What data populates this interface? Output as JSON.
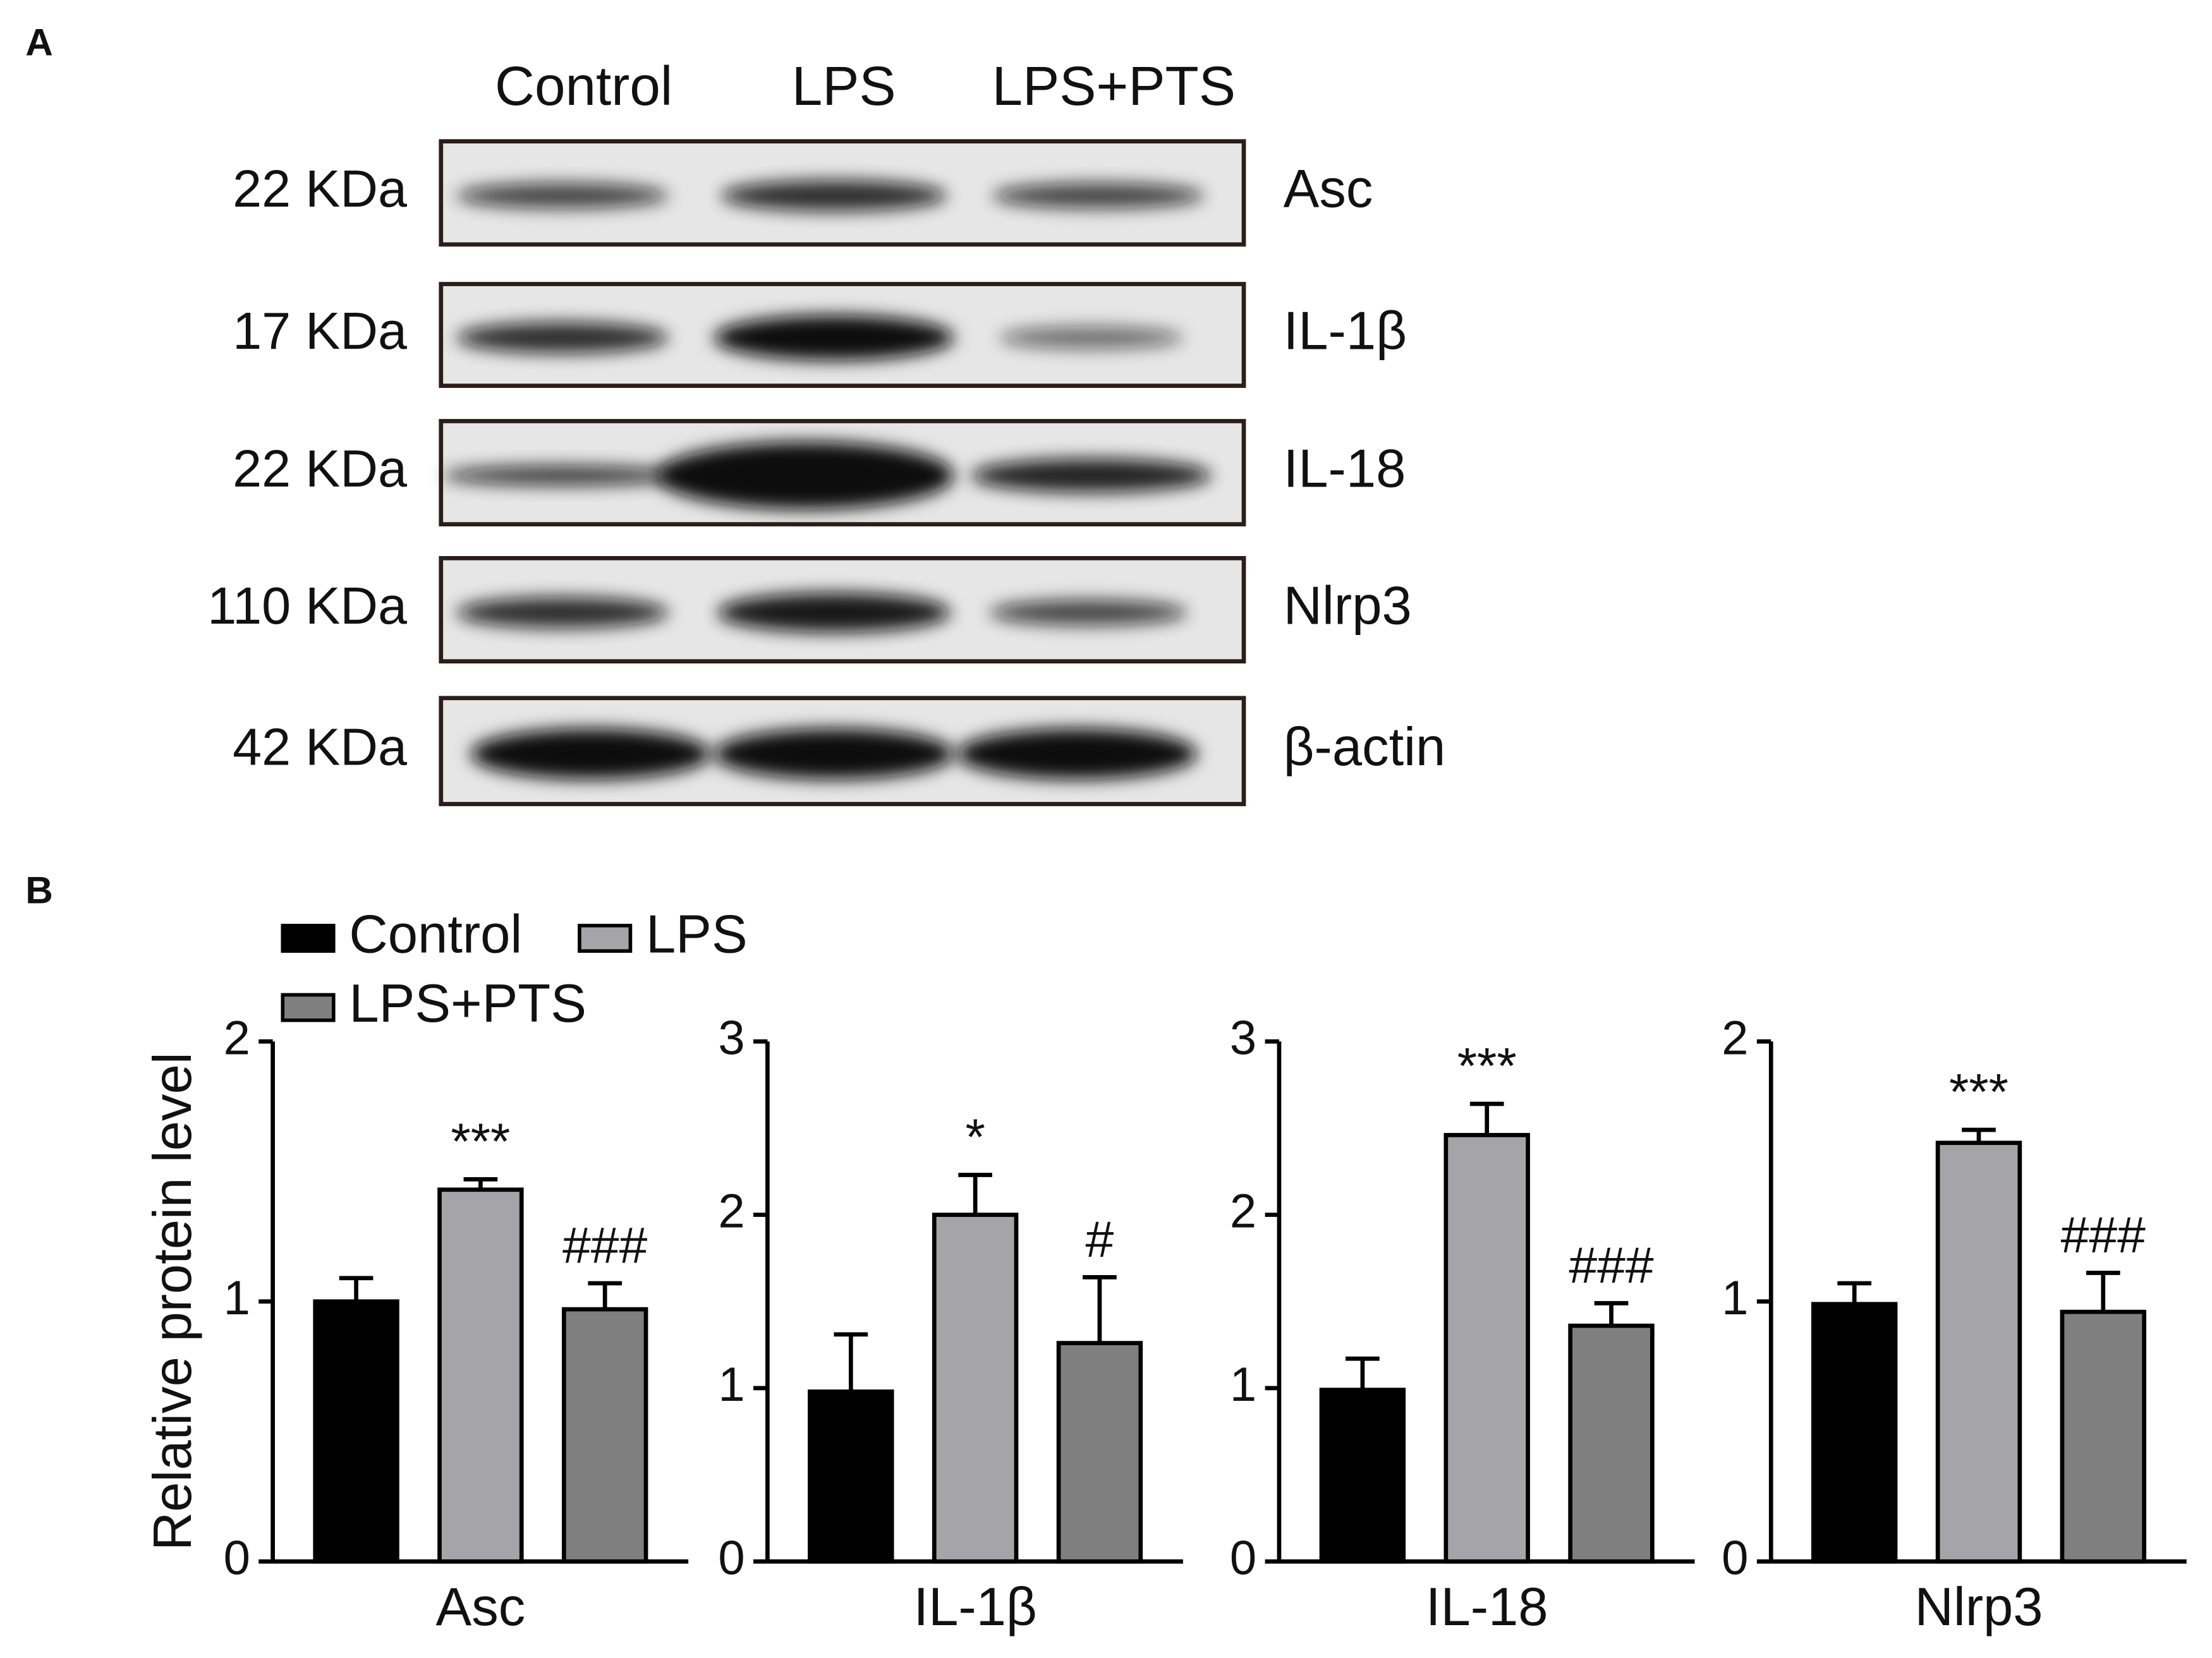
{
  "panels": {
    "a": "A",
    "b": "B"
  },
  "blot": {
    "columns": [
      "Control",
      "LPS",
      "LPS+PTS"
    ],
    "rows": [
      {
        "weight": "22 KDa",
        "protein": "Asc"
      },
      {
        "weight": "17 KDa",
        "protein": "IL-1β"
      },
      {
        "weight": "22 KDa",
        "protein": "IL-18"
      },
      {
        "weight": "110 KDa",
        "protein": "Nlrp3"
      },
      {
        "weight": "42 KDa",
        "protein": "β-actin"
      }
    ]
  },
  "chart_data": [
    {
      "type": "bar",
      "xlabel": "Asc",
      "ylabel": "Relative protein level",
      "ylim": [
        0,
        2
      ],
      "yticks": [
        0,
        1,
        2
      ],
      "series": [
        {
          "name": "Control",
          "color": "#000000",
          "values": [
            1.0
          ],
          "errors": [
            0.09
          ]
        },
        {
          "name": "LPS",
          "color": "#a5a5a9",
          "values": [
            1.43
          ],
          "errors": [
            0.04
          ],
          "annotations": [
            "***"
          ]
        },
        {
          "name": "LPS+PTS",
          "color": "#7f7f7f",
          "values": [
            0.97
          ],
          "errors": [
            0.1
          ],
          "annotations": [
            "###"
          ]
        }
      ]
    },
    {
      "type": "bar",
      "xlabel": "IL-1β",
      "ylim": [
        0,
        3
      ],
      "yticks": [
        0,
        1,
        2,
        3
      ],
      "series": [
        {
          "color": "#000000",
          "values": [
            0.98
          ],
          "errors": [
            0.33
          ]
        },
        {
          "color": "#a5a5a9",
          "values": [
            2.0
          ],
          "errors": [
            0.23
          ],
          "annotations": [
            "*"
          ]
        },
        {
          "color": "#7f7f7f",
          "values": [
            1.26
          ],
          "errors": [
            0.38
          ],
          "annotations": [
            "#"
          ]
        }
      ]
    },
    {
      "type": "bar",
      "xlabel": "IL-18",
      "ylim": [
        0,
        3
      ],
      "yticks": [
        0,
        1,
        2,
        3
      ],
      "series": [
        {
          "color": "#000000",
          "values": [
            0.99
          ],
          "errors": [
            0.18
          ]
        },
        {
          "color": "#a5a5a9",
          "values": [
            2.46
          ],
          "errors": [
            0.18
          ],
          "annotations": [
            "***"
          ]
        },
        {
          "color": "#7f7f7f",
          "values": [
            1.36
          ],
          "errors": [
            0.13
          ],
          "annotations": [
            "###"
          ]
        }
      ]
    },
    {
      "type": "bar",
      "xlabel": "Nlrp3",
      "ylim": [
        0,
        2
      ],
      "yticks": [
        0,
        1,
        2
      ],
      "series": [
        {
          "color": "#000000",
          "values": [
            0.99
          ],
          "errors": [
            0.08
          ]
        },
        {
          "color": "#a5a5a9",
          "values": [
            1.61
          ],
          "errors": [
            0.05
          ],
          "annotations": [
            "***"
          ]
        },
        {
          "color": "#7f7f7f",
          "values": [
            0.96
          ],
          "errors": [
            0.15
          ],
          "annotations": [
            "###"
          ]
        }
      ]
    }
  ]
}
